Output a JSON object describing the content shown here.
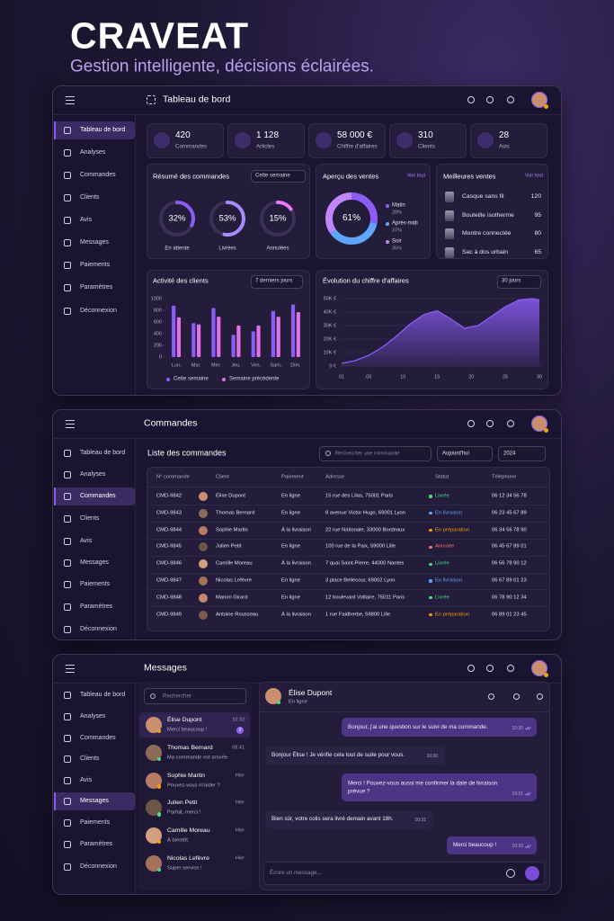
{
  "brand": {
    "title": "CRAVEAT",
    "tagline": "Gestion intelligente, décisions éclairées."
  },
  "sidebar": [
    "Tableau de bord",
    "Analyses",
    "Commandes",
    "Clients",
    "Avis",
    "Messages",
    "Paiements",
    "Paramètres",
    "Déconnexion"
  ],
  "dashboard": {
    "header_title": "Tableau de bord",
    "stats": [
      {
        "value": 420,
        "label": "Commandes"
      },
      {
        "value": "1 128",
        "label": "Articles"
      },
      {
        "value": "58 000 €",
        "label": "Chiffre d'affaires"
      },
      {
        "value": 310,
        "label": "Clients"
      },
      {
        "value": 28,
        "label": "Avis"
      }
    ],
    "order_summary": {
      "title": "Résumé des commandes",
      "filter": "Cette semaine",
      "labels": [
        "En attente",
        "Livrées",
        "Annulées"
      ],
      "values": [
        32,
        53,
        15
      ],
      "value_labels": [
        "32%",
        "53%",
        "15%"
      ],
      "colors": [
        "#8b5cf6",
        "#a78bfa",
        "#e879f9"
      ]
    },
    "sales_overview": {
      "title": "Aperçu des ventes",
      "link": "Voir tout",
      "center_label": "61%",
      "labels": [
        "Matin",
        "Après-midi",
        "Soir"
      ],
      "values": [
        28,
        37,
        35
      ],
      "value_labels": [
        "28%",
        "37%",
        "35%"
      ],
      "colors": [
        "#8b5cf6",
        "#60a5fa",
        "#c084fc"
      ]
    },
    "best_sellers": {
      "title": "Meilleures ventes",
      "link": "Voir tout",
      "items": [
        {
          "name": "Casque sans fil",
          "value": 120
        },
        {
          "name": "Bouteille isotherme",
          "value": 95
        },
        {
          "name": "Montre connectée",
          "value": 80
        },
        {
          "name": "Sac à dos urbain",
          "value": 65
        }
      ]
    },
    "customer_activity": {
      "type": "bar",
      "title": "Activité des clients",
      "filter": "7 derniers jours",
      "categories": [
        "Lun.",
        "Mar.",
        "Mer.",
        "Jeu.",
        "Ven.",
        "Sam.",
        "Dim."
      ],
      "series": [
        {
          "name": "Cette semaine",
          "color": "#8b5cf6",
          "values": [
            880,
            580,
            840,
            380,
            440,
            790,
            900
          ]
        },
        {
          "name": "Semaine précédente",
          "color": "#e071e6",
          "values": [
            680,
            560,
            690,
            540,
            540,
            690,
            770
          ]
        }
      ],
      "ylim": [
        0,
        1000
      ],
      "yticks": [
        0,
        200,
        400,
        600,
        800,
        1000
      ]
    },
    "revenue": {
      "type": "area",
      "title": "Évolution du chiffre d'affaires",
      "filter": "30 jours",
      "color": "#8b5cf6",
      "grid": true,
      "x": [
        1,
        3,
        5,
        7,
        9,
        11,
        13,
        15,
        17,
        19,
        21,
        23,
        25,
        27,
        29,
        30
      ],
      "values": [
        2000,
        4000,
        8000,
        14000,
        22000,
        31000,
        38000,
        41000,
        35000,
        28000,
        30000,
        37000,
        44000,
        49000,
        50000,
        49000
      ],
      "xlim": [
        1,
        30
      ],
      "xticks": [
        {
          "value": 1,
          "label": "01"
        },
        {
          "value": 5,
          "label": "05"
        },
        10,
        15,
        20,
        25,
        30
      ],
      "ylim": [
        0,
        50000
      ],
      "yticks": [
        {
          "value": 0,
          "label": "0 €"
        },
        {
          "value": 10000,
          "label": "10K €"
        },
        {
          "value": 20000,
          "label": "20K €"
        },
        {
          "value": 30000,
          "label": "30K €"
        },
        {
          "value": 40000,
          "label": "40K €"
        },
        {
          "value": 50000,
          "label": "50K €"
        }
      ]
    }
  },
  "orders": {
    "header_title": "Commandes",
    "list_title": "Liste des commandes",
    "search_placeholder": "Rechercher une commande",
    "filters": [
      "Aujourd'hui",
      "2024"
    ],
    "columns": [
      "N° commande",
      "Client",
      "Paiement",
      "Adresse",
      "Statut",
      "Téléphone"
    ],
    "rows": [
      {
        "id": "CMD-9842",
        "client": "Élise Dupont",
        "payment": "En ligne",
        "address": "15 rue des Lilas, 75001 Paris",
        "status": "Livrée",
        "status_color": "#4ade80",
        "phone": "06 12 34 56 78"
      },
      {
        "id": "CMD-9843",
        "client": "Thomas Bernard",
        "payment": "En ligne",
        "address": "8 avenue Victor Hugo, 69001 Lyon",
        "status": "En livraison",
        "status_color": "#60a5fa",
        "phone": "06 23 45 67 89"
      },
      {
        "id": "CMD-9844",
        "client": "Sophie Martin",
        "payment": "À la livraison",
        "address": "22 rue Nationale, 33000 Bordeaux",
        "status": "En préparation",
        "status_color": "#f59e0b",
        "phone": "06 34 56 78 90"
      },
      {
        "id": "CMD-9845",
        "client": "Julien Petit",
        "payment": "En ligne",
        "address": "100 rue de la Paix, 59000 Lille",
        "status": "Annulée",
        "status_color": "#f87171",
        "phone": "06 45 67 89 01"
      },
      {
        "id": "CMD-9846",
        "client": "Camille Moreau",
        "payment": "À la livraison",
        "address": "7 quai Saint-Pierre, 44000 Nantes",
        "status": "Livrée",
        "status_color": "#4ade80",
        "phone": "06 56 78 90 12"
      },
      {
        "id": "CMD-9847",
        "client": "Nicolas Lefèvre",
        "payment": "En ligne",
        "address": "3 place Bellecour, 69002 Lyon",
        "status": "En livraison",
        "status_color": "#60a5fa",
        "phone": "06 67 89 01 23"
      },
      {
        "id": "CMD-9848",
        "client": "Manon Girard",
        "payment": "En ligne",
        "address": "12 boulevard Voltaire, 75011 Paris",
        "status": "Livrée",
        "status_color": "#4ade80",
        "phone": "06 78 90 12 34"
      },
      {
        "id": "CMD-9849",
        "client": "Antoine Rousseau",
        "payment": "À la livraison",
        "address": "1 rue Faidherbe, 59800 Lille",
        "status": "En préparation",
        "status_color": "#f59e0b",
        "phone": "06 89 01 23 45"
      }
    ]
  },
  "messages": {
    "header_title": "Messages",
    "search_placeholder": "Rechercher",
    "conversations": [
      {
        "name": "Élise Dupont",
        "time": "10:32",
        "preview": "Merci beaucoup !",
        "unread": 2
      },
      {
        "name": "Thomas Bernard",
        "time": "09:41",
        "preview": "Ma commande est arrivée."
      },
      {
        "name": "Sophie Martin",
        "time": "Hier",
        "preview": "Pouvez-vous m'aider ?"
      },
      {
        "name": "Julien Petit",
        "time": "Hier",
        "preview": "Parfait, merci !"
      },
      {
        "name": "Camille Moreau",
        "time": "Hier",
        "preview": "À bientôt."
      },
      {
        "name": "Nicolas Lefèvre",
        "time": "Hier",
        "preview": "Super service !"
      }
    ],
    "chat": {
      "name": "Élise Dupont",
      "status": "En ligne",
      "messages": [
        {
          "from": "client",
          "text": "Bonjour, j'ai une question sur le suivi de ma commande.",
          "time": "10:30"
        },
        {
          "from": "agent",
          "text": "Bonjour Élise ! Je vérifie cela tout de suite pour vous.",
          "time": "10:30"
        },
        {
          "from": "client",
          "text": "Merci ! Pouvez-vous aussi me confirmer la date de livraison prévue ?",
          "time": "10:31"
        },
        {
          "from": "agent",
          "text": "Bien sûr, votre colis sera livré demain avant 18h.",
          "time": "10:31"
        },
        {
          "from": "client",
          "text": "Merci beaucoup !",
          "time": "10:32"
        }
      ],
      "input_placeholder": "Écrire un message..."
    }
  }
}
